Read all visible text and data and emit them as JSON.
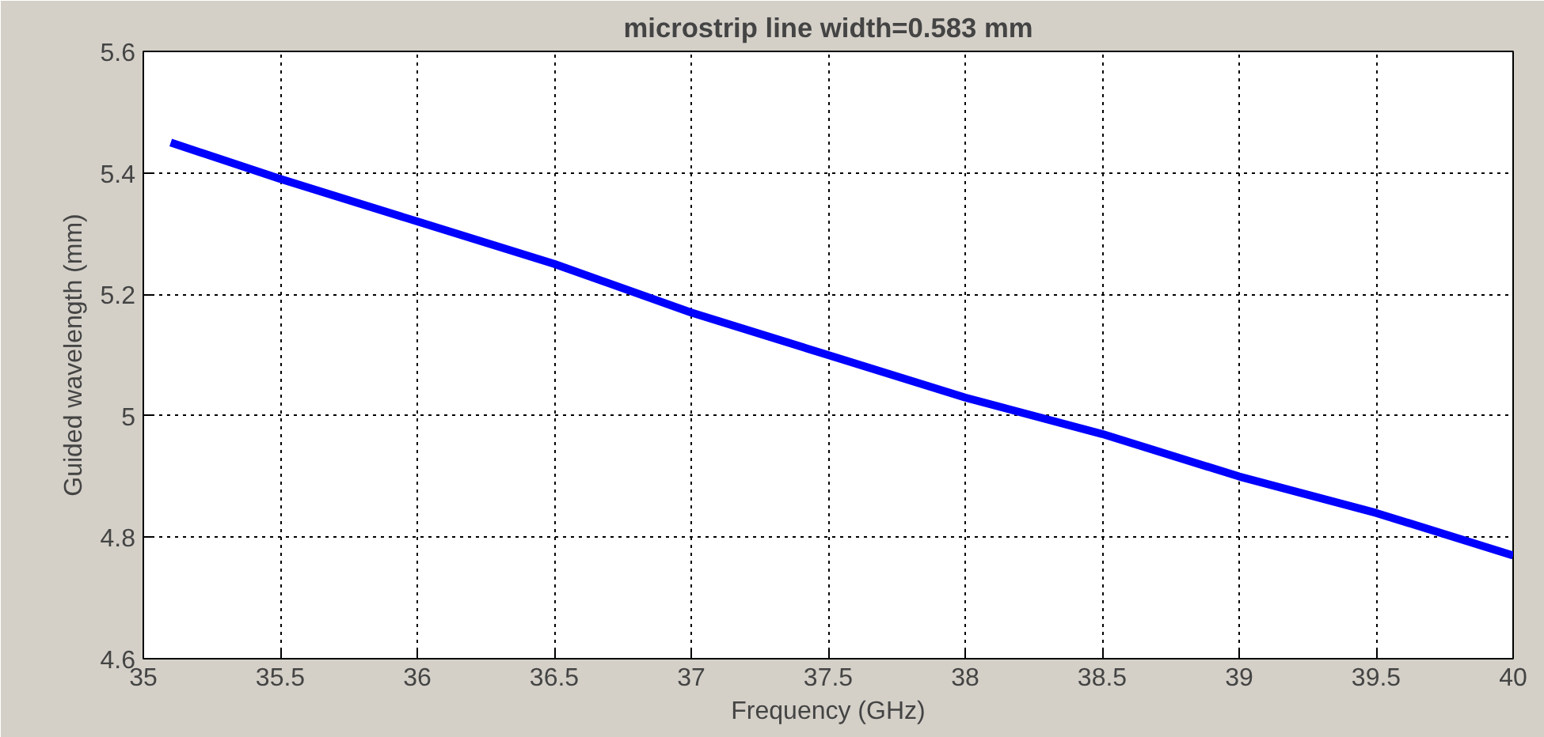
{
  "chart_data": {
    "type": "line",
    "title": "microstrip line width=0.583 mm",
    "xlabel": "Frequency (GHz)",
    "ylabel": "Guided wavelength (mm)",
    "x": [
      35.1,
      35.5,
      36,
      36.5,
      37,
      37.5,
      38,
      38.5,
      39,
      39.5,
      40
    ],
    "series": [
      {
        "color": "#0000ff",
        "values": [
          5.45,
          5.39,
          5.32,
          5.25,
          5.17,
          5.1,
          5.03,
          4.97,
          4.9,
          4.84,
          4.77
        ]
      }
    ],
    "xlim": [
      35,
      40
    ],
    "ylim": [
      4.6,
      5.6
    ],
    "xticks": [
      35,
      35.5,
      36,
      36.5,
      37,
      37.5,
      38,
      38.5,
      39,
      39.5,
      40
    ],
    "yticks": [
      4.6,
      4.8,
      5,
      5.2,
      5.4,
      5.6
    ],
    "grid": true,
    "line_style": "solid",
    "marker": "none"
  }
}
